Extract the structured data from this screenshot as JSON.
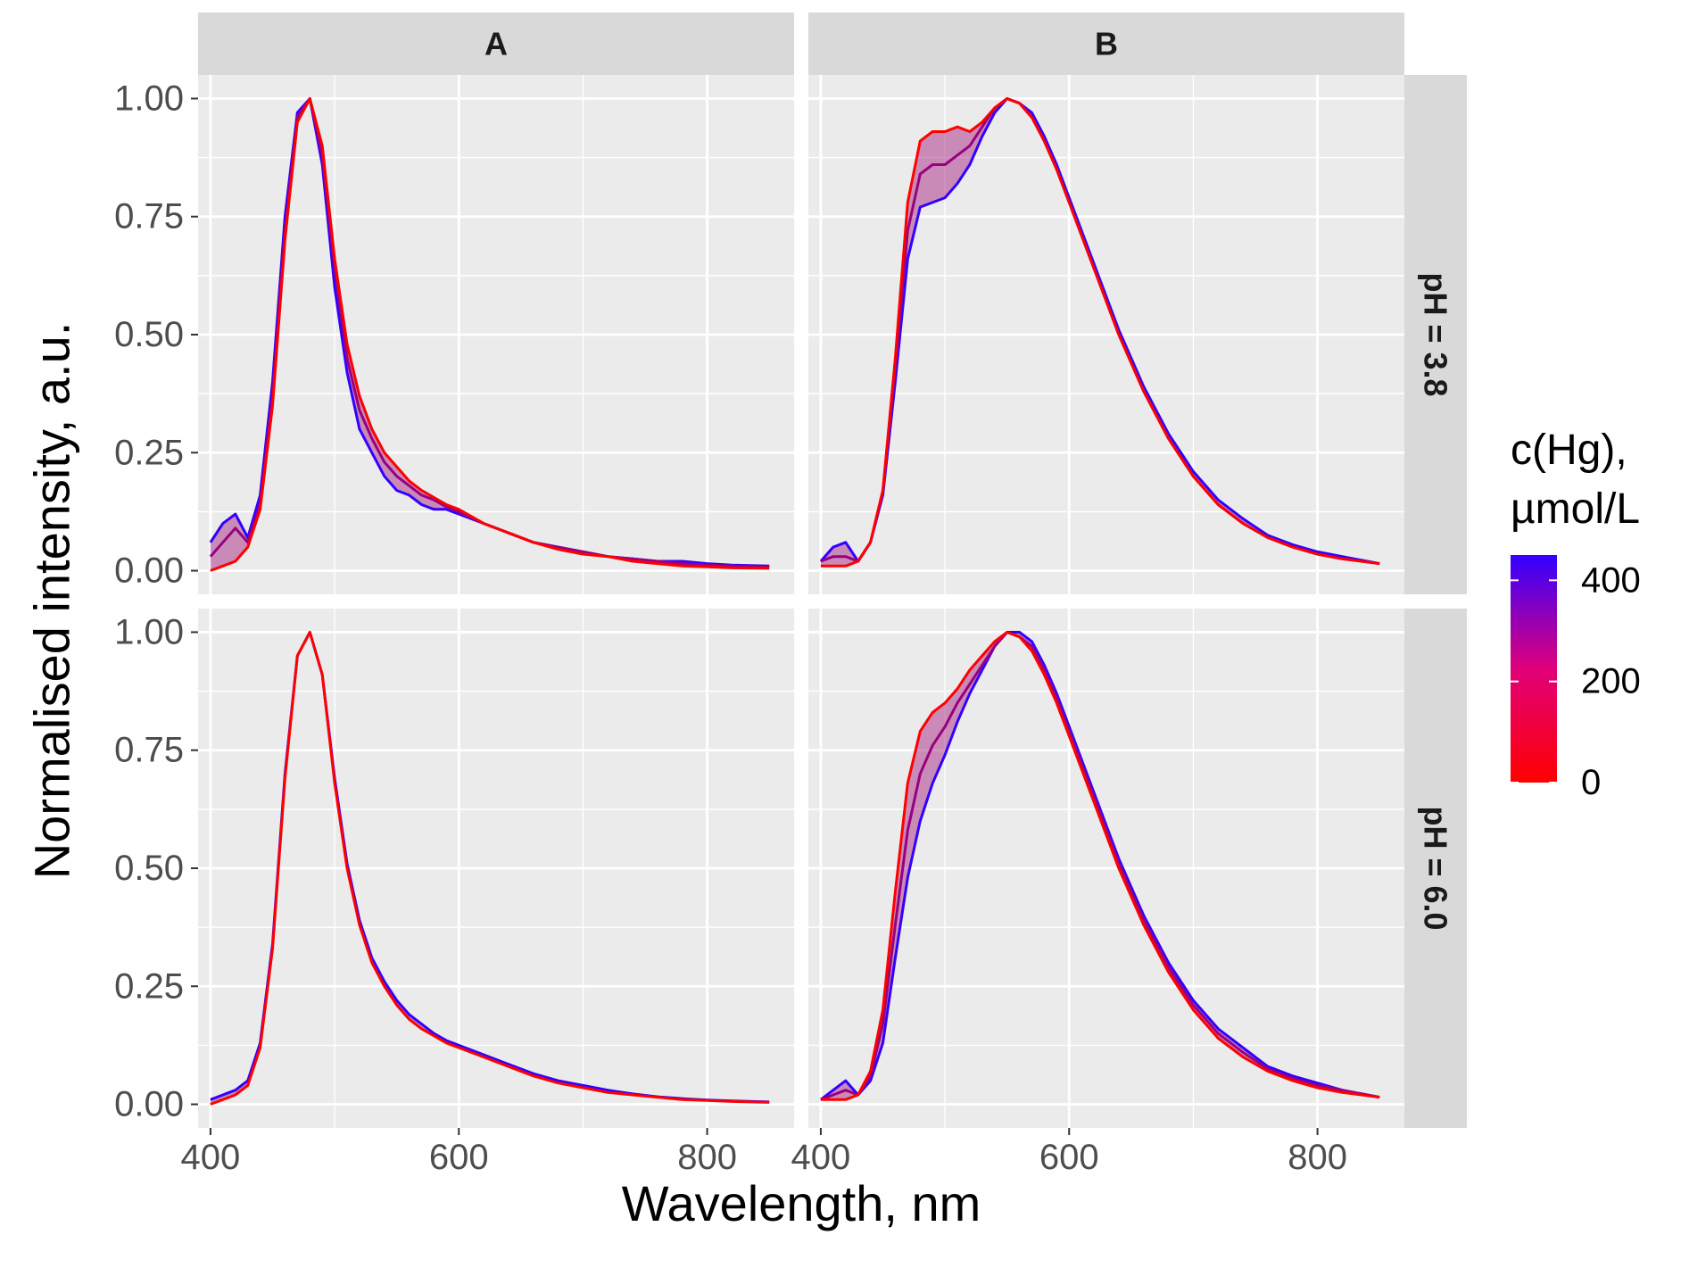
{
  "chart_data": {
    "type": "line",
    "facets": {
      "columns": [
        "A",
        "B"
      ],
      "rows": [
        "pH = 3.8",
        "pH = 6.0"
      ]
    },
    "xlabel": "Wavelength, nm",
    "ylabel": "Normalised intensity, a.u.",
    "xlim": [
      390,
      870
    ],
    "ylim": [
      -0.05,
      1.05
    ],
    "x_ticks": [
      "400",
      "600",
      "800"
    ],
    "y_ticks": [
      "0.00",
      "0.25",
      "0.50",
      "0.75",
      "1.00"
    ],
    "grid": true,
    "legend": {
      "title_line1": "c(Hg),",
      "title_line2": "µmol/L",
      "placement": "right",
      "range": [
        0,
        450
      ],
      "ticks": [
        "0",
        "200",
        "400"
      ],
      "color_low": "#ff0000",
      "color_high": "#3300ff"
    },
    "x": [
      400,
      410,
      420,
      430,
      440,
      450,
      460,
      470,
      480,
      490,
      500,
      510,
      520,
      530,
      540,
      550,
      560,
      570,
      580,
      590,
      600,
      620,
      640,
      660,
      680,
      700,
      720,
      740,
      760,
      780,
      800,
      820,
      850
    ],
    "panels": [
      {
        "column": "A",
        "row": "pH = 3.8",
        "series": [
          {
            "c": 0,
            "values": [
              0.0,
              0.01,
              0.02,
              0.05,
              0.13,
              0.35,
              0.7,
              0.95,
              1.0,
              0.9,
              0.66,
              0.48,
              0.37,
              0.3,
              0.25,
              0.22,
              0.19,
              0.17,
              0.155,
              0.14,
              0.13,
              0.1,
              0.08,
              0.06,
              0.045,
              0.035,
              0.03,
              0.02,
              0.015,
              0.01,
              0.008,
              0.006,
              0.005
            ]
          },
          {
            "c": 225,
            "values": [
              0.03,
              0.06,
              0.09,
              0.06,
              0.14,
              0.37,
              0.72,
              0.96,
              1.0,
              0.88,
              0.64,
              0.45,
              0.34,
              0.28,
              0.23,
              0.2,
              0.18,
              0.16,
              0.15,
              0.135,
              0.125,
              0.1,
              0.08,
              0.06,
              0.05,
              0.04,
              0.03,
              0.025,
              0.02,
              0.015,
              0.012,
              0.01,
              0.008
            ]
          },
          {
            "c": 450,
            "values": [
              0.06,
              0.1,
              0.12,
              0.07,
              0.16,
              0.4,
              0.75,
              0.97,
              1.0,
              0.86,
              0.6,
              0.42,
              0.3,
              0.25,
              0.2,
              0.17,
              0.16,
              0.14,
              0.13,
              0.13,
              0.12,
              0.1,
              0.08,
              0.06,
              0.05,
              0.04,
              0.03,
              0.025,
              0.02,
              0.02,
              0.015,
              0.012,
              0.01
            ]
          }
        ]
      },
      {
        "column": "B",
        "row": "pH = 3.8",
        "series": [
          {
            "c": 0,
            "values": [
              0.01,
              0.01,
              0.01,
              0.02,
              0.06,
              0.17,
              0.45,
              0.78,
              0.91,
              0.93,
              0.93,
              0.94,
              0.93,
              0.95,
              0.98,
              1.0,
              0.99,
              0.96,
              0.91,
              0.85,
              0.78,
              0.64,
              0.5,
              0.38,
              0.28,
              0.2,
              0.14,
              0.1,
              0.07,
              0.05,
              0.035,
              0.025,
              0.015
            ]
          },
          {
            "c": 225,
            "values": [
              0.02,
              0.03,
              0.03,
              0.02,
              0.06,
              0.17,
              0.43,
              0.72,
              0.84,
              0.86,
              0.86,
              0.88,
              0.9,
              0.94,
              0.98,
              1.0,
              0.99,
              0.96,
              0.91,
              0.85,
              0.78,
              0.64,
              0.5,
              0.38,
              0.28,
              0.2,
              0.14,
              0.1,
              0.07,
              0.05,
              0.035,
              0.025,
              0.015
            ]
          },
          {
            "c": 450,
            "values": [
              0.02,
              0.05,
              0.06,
              0.02,
              0.06,
              0.16,
              0.4,
              0.66,
              0.77,
              0.78,
              0.79,
              0.82,
              0.86,
              0.92,
              0.97,
              1.0,
              0.99,
              0.97,
              0.92,
              0.86,
              0.79,
              0.65,
              0.51,
              0.39,
              0.29,
              0.21,
              0.15,
              0.11,
              0.075,
              0.055,
              0.04,
              0.03,
              0.015
            ]
          }
        ]
      },
      {
        "column": "A",
        "row": "pH = 6.0",
        "series": [
          {
            "c": 0,
            "values": [
              0.0,
              0.01,
              0.02,
              0.04,
              0.12,
              0.33,
              0.69,
              0.95,
              1.0,
              0.91,
              0.68,
              0.5,
              0.38,
              0.3,
              0.25,
              0.21,
              0.18,
              0.16,
              0.145,
              0.13,
              0.12,
              0.1,
              0.08,
              0.06,
              0.045,
              0.035,
              0.025,
              0.02,
              0.015,
              0.01,
              0.008,
              0.006,
              0.004
            ]
          },
          {
            "c": 450,
            "values": [
              0.01,
              0.02,
              0.03,
              0.05,
              0.13,
              0.34,
              0.7,
              0.95,
              1.0,
              0.91,
              0.69,
              0.51,
              0.39,
              0.31,
              0.26,
              0.22,
              0.19,
              0.17,
              0.15,
              0.135,
              0.125,
              0.105,
              0.085,
              0.065,
              0.05,
              0.04,
              0.03,
              0.022,
              0.016,
              0.012,
              0.009,
              0.007,
              0.005
            ]
          }
        ]
      },
      {
        "column": "B",
        "row": "pH = 6.0",
        "series": [
          {
            "c": 0,
            "values": [
              0.01,
              0.01,
              0.01,
              0.02,
              0.07,
              0.2,
              0.45,
              0.68,
              0.79,
              0.83,
              0.85,
              0.88,
              0.92,
              0.95,
              0.98,
              1.0,
              0.99,
              0.96,
              0.91,
              0.85,
              0.78,
              0.64,
              0.5,
              0.38,
              0.28,
              0.2,
              0.14,
              0.1,
              0.07,
              0.05,
              0.035,
              0.025,
              0.015
            ]
          },
          {
            "c": 225,
            "values": [
              0.01,
              0.02,
              0.03,
              0.02,
              0.06,
              0.17,
              0.38,
              0.58,
              0.7,
              0.76,
              0.8,
              0.85,
              0.89,
              0.93,
              0.97,
              1.0,
              0.99,
              0.97,
              0.92,
              0.86,
              0.79,
              0.65,
              0.51,
              0.39,
              0.29,
              0.21,
              0.15,
              0.11,
              0.075,
              0.055,
              0.04,
              0.03,
              0.015
            ]
          },
          {
            "c": 450,
            "values": [
              0.01,
              0.03,
              0.05,
              0.02,
              0.05,
              0.13,
              0.31,
              0.48,
              0.6,
              0.68,
              0.74,
              0.81,
              0.87,
              0.92,
              0.97,
              1.0,
              1.0,
              0.98,
              0.93,
              0.87,
              0.8,
              0.66,
              0.52,
              0.4,
              0.3,
              0.22,
              0.16,
              0.12,
              0.08,
              0.06,
              0.045,
              0.03,
              0.015
            ]
          }
        ]
      }
    ]
  }
}
